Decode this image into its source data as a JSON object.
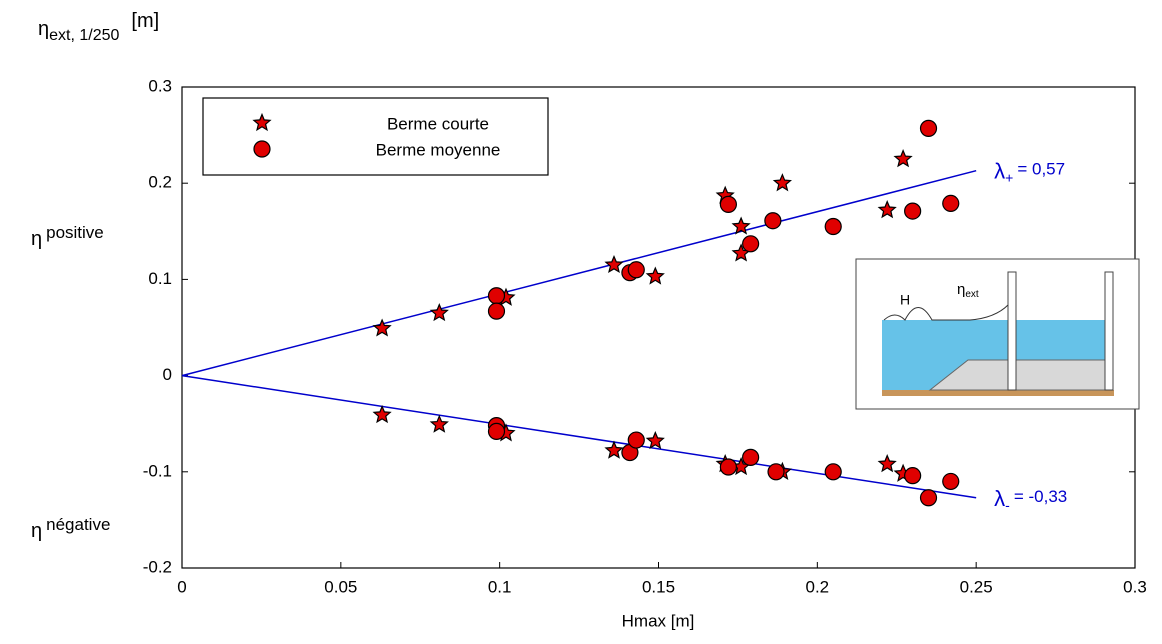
{
  "chart_data": {
    "type": "scatter",
    "y_label": {
      "symbol": "η",
      "sub": "ext, 1/250",
      "unit": "[m]"
    },
    "x_label": "Hmax  [m]",
    "side_labels": [
      {
        "symbol": "η",
        "text": "positive"
      },
      {
        "symbol": "η",
        "text": "négative"
      }
    ],
    "xlim": [
      0,
      0.3
    ],
    "ylim": [
      -0.2,
      0.3
    ],
    "xticks": [
      0,
      0.05,
      0.1,
      0.15,
      0.2,
      0.25,
      0.3
    ],
    "yticks": [
      -0.2,
      -0.1,
      0,
      0.1,
      0.2,
      0.3
    ],
    "series": [
      {
        "name": "Berme courte",
        "marker": "star",
        "color": "#e00000",
        "x": [
          0.063,
          0.081,
          0.102,
          0.136,
          0.149,
          0.171,
          0.176,
          0.176,
          0.189,
          0.222,
          0.227,
          0.063,
          0.081,
          0.102,
          0.136,
          0.149,
          0.171,
          0.176,
          0.189,
          0.222,
          0.227
        ],
        "values": [
          0.049,
          0.065,
          0.081,
          0.115,
          0.103,
          0.187,
          0.155,
          0.127,
          0.2,
          0.172,
          0.225,
          -0.041,
          -0.051,
          -0.06,
          -0.078,
          -0.068,
          -0.092,
          -0.095,
          -0.1,
          -0.092,
          -0.102
        ]
      },
      {
        "name": "Berme moyenne",
        "marker": "circle",
        "color": "#e00000",
        "x": [
          0.099,
          0.099,
          0.141,
          0.143,
          0.172,
          0.179,
          0.186,
          0.205,
          0.23,
          0.235,
          0.242,
          0.099,
          0.099,
          0.141,
          0.143,
          0.172,
          0.179,
          0.187,
          0.205,
          0.23,
          0.235,
          0.242
        ],
        "values": [
          0.083,
          0.067,
          0.107,
          0.11,
          0.178,
          0.137,
          0.161,
          0.155,
          0.171,
          0.257,
          0.179,
          -0.052,
          -0.058,
          -0.08,
          -0.067,
          -0.095,
          -0.085,
          -0.1,
          -0.1,
          -0.104,
          -0.127,
          -0.11
        ]
      }
    ],
    "fit_lines": [
      {
        "x": [
          0,
          0.25
        ],
        "values": [
          0,
          0.213
        ],
        "color": "#0000cc",
        "symbol": "λ",
        "sub": "+",
        "text": "= 0,57"
      },
      {
        "x": [
          0,
          0.25
        ],
        "values": [
          0,
          -0.127
        ],
        "color": "#0000cc",
        "symbol": "λ",
        "sub": "-",
        "text": "= -0,33"
      }
    ],
    "inset_labels": {
      "wave": "H",
      "symbol": "η",
      "sub": "ext"
    }
  }
}
